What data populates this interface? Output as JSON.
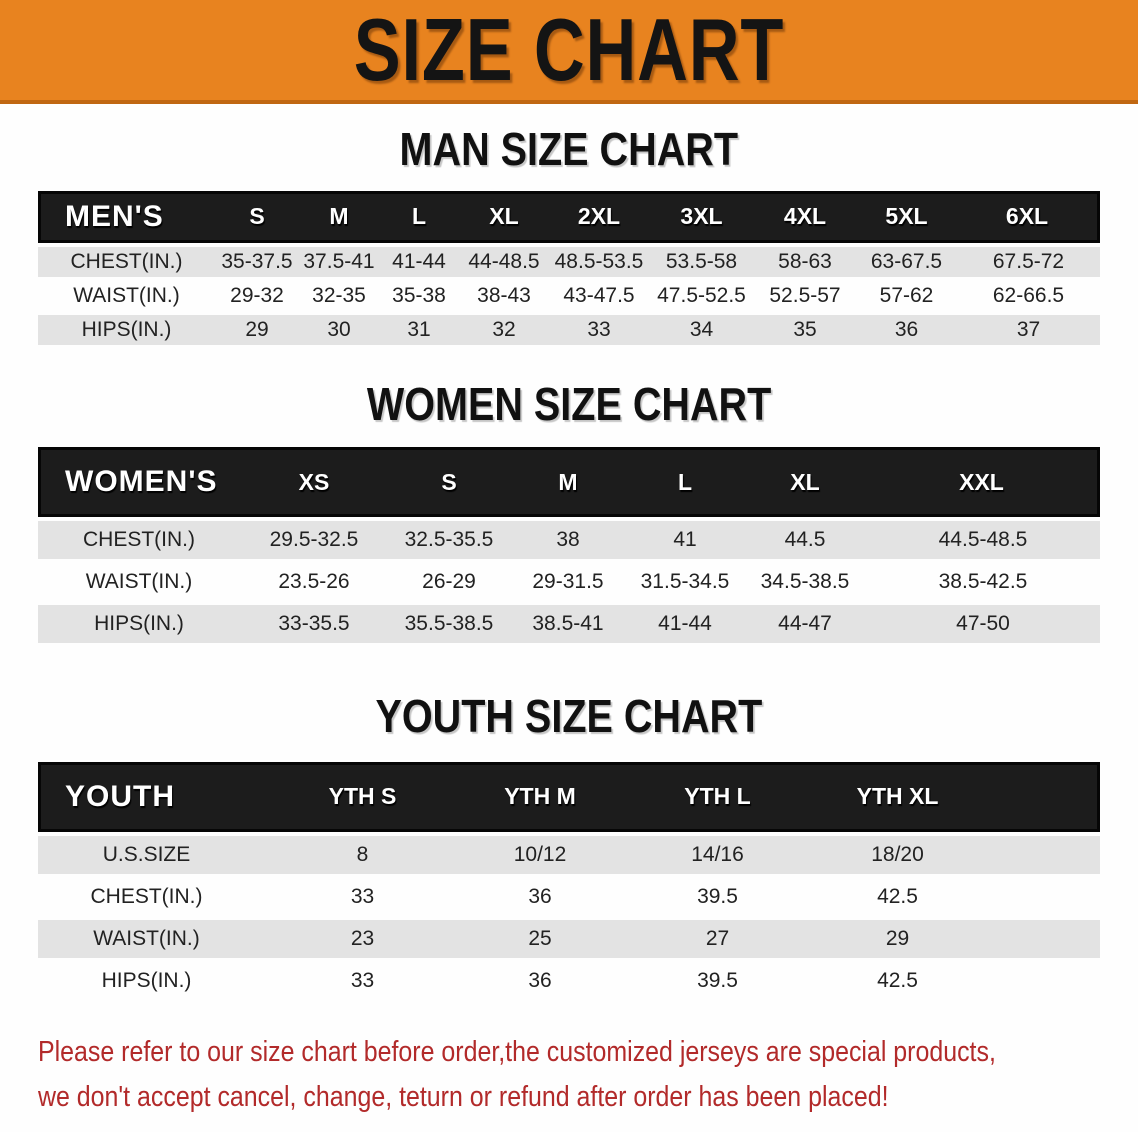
{
  "banner": {
    "text": "SIZE CHART"
  },
  "colors": {
    "banner_bg": "#E8831F",
    "banner_edge": "#C06712",
    "header_bar": "#1C1C1C",
    "row_stripe": "#E3E3E3",
    "disclaimer_text": "#B22A2A"
  },
  "chart_data": [
    {
      "type": "table",
      "title": "MAN SIZE CHART",
      "corner_label": "MEN'S",
      "columns": [
        "S",
        "M",
        "L",
        "XL",
        "2XL",
        "3XL",
        "4XL",
        "5XL",
        "6XL"
      ],
      "rows": [
        {
          "label": "CHEST(IN.)",
          "values": [
            "35-37.5",
            "37.5-41",
            "41-44",
            "44-48.5",
            "48.5-53.5",
            "53.5-58",
            "58-63",
            "63-67.5",
            "67.5-72"
          ]
        },
        {
          "label": "WAIST(IN.)",
          "values": [
            "29-32",
            "32-35",
            "35-38",
            "38-43",
            "43-47.5",
            "47.5-52.5",
            "52.5-57",
            "57-62",
            "62-66.5"
          ]
        },
        {
          "label": "HIPS(IN.)",
          "values": [
            "29",
            "30",
            "31",
            "32",
            "33",
            "34",
            "35",
            "36",
            "37"
          ]
        }
      ]
    },
    {
      "type": "table",
      "title": "WOMEN SIZE CHART",
      "corner_label": "WOMEN'S",
      "columns": [
        "XS",
        "S",
        "M",
        "L",
        "XL",
        "XXL"
      ],
      "rows": [
        {
          "label": "CHEST(IN.)",
          "values": [
            "29.5-32.5",
            "32.5-35.5",
            "38",
            "41",
            "44.5",
            "44.5-48.5"
          ]
        },
        {
          "label": "WAIST(IN.)",
          "values": [
            "23.5-26",
            "26-29",
            "29-31.5",
            "31.5-34.5",
            "34.5-38.5",
            "38.5-42.5"
          ]
        },
        {
          "label": "HIPS(IN.)",
          "values": [
            "33-35.5",
            "35.5-38.5",
            "38.5-41",
            "41-44",
            "44-47",
            "47-50"
          ]
        }
      ]
    },
    {
      "type": "table",
      "title": "YOUTH SIZE CHART",
      "corner_label": "YOUTH",
      "columns": [
        "YTH S",
        "YTH M",
        "YTH L",
        "YTH XL"
      ],
      "rows": [
        {
          "label": "U.S.SIZE",
          "values": [
            "8",
            "10/12",
            "14/16",
            "18/20"
          ]
        },
        {
          "label": "CHEST(IN.)",
          "values": [
            "33",
            "36",
            "39.5",
            "42.5"
          ]
        },
        {
          "label": "WAIST(IN.)",
          "values": [
            "23",
            "25",
            "27",
            "29"
          ]
        },
        {
          "label": "HIPS(IN.)",
          "values": [
            "33",
            "36",
            "39.5",
            "42.5"
          ]
        }
      ]
    }
  ],
  "disclaimer": {
    "lines": [
      "Please refer to our size chart before order,the customized jerseys are special products,",
      "we don't accept cancel, change, teturn or refund after order has been placed!"
    ]
  }
}
